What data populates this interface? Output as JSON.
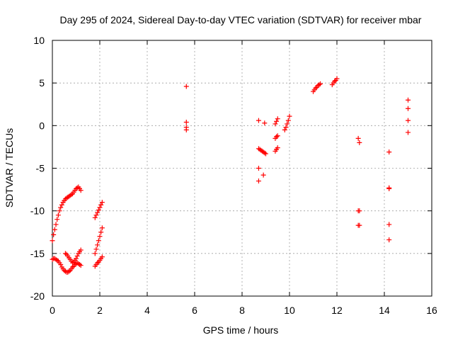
{
  "chart_data": {
    "type": "scatter",
    "title": "Day 295 of 2024, Sidereal Day-to-day VTEC variation (SDTVAR) for receiver mbar",
    "xlabel": "GPS time / hours",
    "ylabel": "SDTVAR / TECUs",
    "xlim": [
      0,
      16
    ],
    "ylim": [
      -20,
      10
    ],
    "xticks": [
      "0",
      "2",
      "4",
      "6",
      "8",
      "10",
      "12",
      "14",
      "16"
    ],
    "yticks": [
      "10",
      "5",
      "0",
      "-5",
      "-10",
      "-15",
      "-20"
    ],
    "grid": true,
    "marker": "+",
    "color": "#ff0000",
    "series": [
      {
        "x": [
          0.0,
          0.05,
          0.1,
          0.15,
          0.2,
          0.25,
          0.3,
          0.35,
          0.4,
          0.45,
          0.5,
          0.55,
          0.6,
          0.65,
          0.7,
          0.75,
          0.8,
          0.85,
          0.9,
          0.95,
          1.0,
          1.05,
          1.1,
          1.15,
          1.2,
          0.0,
          0.05,
          0.1,
          0.15,
          0.2,
          0.25,
          0.3,
          0.35,
          0.4,
          0.45,
          0.5,
          0.55,
          0.6,
          0.65,
          0.7,
          0.75,
          0.8,
          0.85,
          0.9,
          0.95,
          1.0,
          1.05,
          1.1,
          1.15,
          1.2,
          0.55,
          0.6,
          0.65,
          0.7,
          0.75,
          0.8,
          0.85,
          0.9,
          0.95,
          1.0,
          1.05,
          1.1,
          1.15,
          1.2,
          1.8,
          1.85,
          1.9,
          1.95,
          2.0,
          2.05,
          2.1,
          1.8,
          1.85,
          1.9,
          1.95,
          2.0,
          2.05,
          2.1,
          1.8,
          1.85,
          1.9,
          1.95,
          2.0,
          2.05,
          2.1,
          5.65,
          5.65,
          5.65,
          5.65,
          8.7,
          8.7,
          8.75,
          8.8,
          8.85,
          8.9,
          8.95,
          9.0,
          8.7,
          8.7,
          8.95,
          8.9,
          9.4,
          9.45,
          9.5,
          9.4,
          9.45,
          9.5,
          9.4,
          9.45,
          9.5,
          9.8,
          9.85,
          9.9,
          9.95,
          10.0,
          11.0,
          11.05,
          11.1,
          11.15,
          11.2,
          11.25,
          11.3,
          11.8,
          11.85,
          11.9,
          11.95,
          12.0,
          12.9,
          12.95,
          12.9,
          12.95,
          12.9,
          12.95,
          14.2,
          14.2,
          14.2,
          14.2,
          14.2,
          15.0,
          15.0,
          15.0,
          15.0
        ],
        "y": [
          -13.5,
          -12.8,
          -12.2,
          -11.6,
          -11.0,
          -10.5,
          -10.0,
          -9.6,
          -9.3,
          -9.0,
          -8.8,
          -8.6,
          -8.5,
          -8.4,
          -8.3,
          -8.2,
          -8.1,
          -8.0,
          -7.8,
          -7.6,
          -7.4,
          -7.3,
          -7.2,
          -7.4,
          -7.6,
          -15.7,
          -15.6,
          -15.6,
          -15.7,
          -15.8,
          -15.9,
          -16.1,
          -16.3,
          -16.6,
          -16.8,
          -17.0,
          -17.1,
          -17.2,
          -17.2,
          -17.1,
          -17.0,
          -16.8,
          -16.6,
          -16.5,
          -16.3,
          -16.2,
          -16.1,
          -16.2,
          -16.3,
          -16.4,
          -15.0,
          -15.1,
          -15.3,
          -15.5,
          -15.7,
          -15.9,
          -16.1,
          -16.0,
          -15.8,
          -15.6,
          -15.3,
          -15.0,
          -14.8,
          -14.6,
          -10.8,
          -10.5,
          -10.2,
          -9.9,
          -9.6,
          -9.3,
          -9.0,
          -15.0,
          -14.5,
          -14.0,
          -13.5,
          -13.0,
          -12.5,
          -12.0,
          -16.5,
          -16.3,
          -16.1,
          -16.0,
          -15.8,
          -15.6,
          -15.4,
          4.6,
          0.4,
          -0.2,
          -0.5,
          0.6,
          -2.7,
          -2.8,
          -2.9,
          -3.0,
          -3.1,
          -3.2,
          -3.3,
          -5.0,
          -6.5,
          0.3,
          -5.8,
          0.2,
          0.5,
          0.8,
          -1.5,
          -1.3,
          -1.2,
          -3.0,
          -2.8,
          -2.6,
          -0.5,
          -0.2,
          0.2,
          0.6,
          1.1,
          4.0,
          4.2,
          4.4,
          4.5,
          4.7,
          4.8,
          4.9,
          4.8,
          5.0,
          5.2,
          5.3,
          5.5,
          -1.5,
          -2.0,
          -10.0,
          -10.0,
          -11.7,
          -11.7,
          -3.1,
          -7.3,
          -11.6,
          -13.4,
          -7.4,
          3.0,
          2.0,
          0.6,
          -0.8
        ]
      }
    ]
  }
}
